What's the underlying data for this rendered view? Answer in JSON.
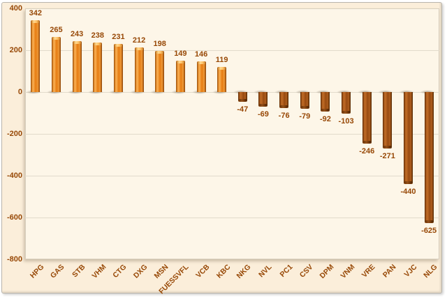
{
  "chart_data": {
    "type": "bar",
    "title": "",
    "xlabel": "",
    "ylabel": "",
    "categories": [
      "HPG",
      "GAS",
      "STB",
      "VHM",
      "CTG",
      "DXG",
      "MSN",
      "FUESSVFL",
      "VCB",
      "KBC",
      "NKG",
      "NVL",
      "PC1",
      "CSV",
      "DPM",
      "VNM",
      "VRE",
      "PAN",
      "VJC",
      "NLG"
    ],
    "values": [
      342,
      265,
      243,
      238,
      231,
      212,
      198,
      149,
      146,
      119,
      -47,
      -69,
      -76,
      -79,
      -92,
      -103,
      -246,
      -271,
      -440,
      -625
    ],
    "ylim": [
      -800,
      400
    ],
    "yticks": [
      400,
      200,
      0,
      -200,
      -400,
      -600,
      -800
    ],
    "grid": true,
    "legend": false,
    "colors": {
      "positive_bar": "#ED8A22",
      "negative_bar": "#A0521A",
      "text": "#974806",
      "chart_background": "#FBEEDA",
      "plot_background": "#FDF6E8",
      "gridline": "#E2DBCB"
    }
  }
}
